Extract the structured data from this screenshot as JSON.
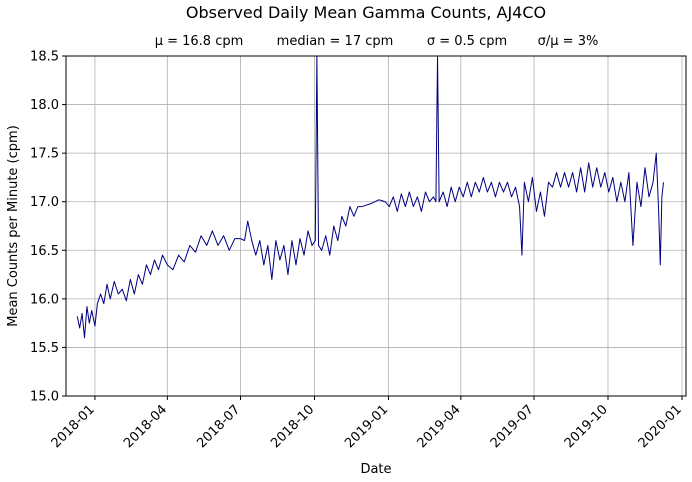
{
  "chart_data": {
    "type": "line",
    "title": "Observed Daily Mean Gamma Counts, AJ4CO",
    "subtitle_stats": [
      "μ = 16.8 cpm",
      "median = 17 cpm",
      "σ = 0.5 cpm",
      "σ/μ = 3%"
    ],
    "xlabel": "Date",
    "ylabel": "Mean Counts per Minute (cpm)",
    "ylim": [
      15.0,
      18.5
    ],
    "xlim": [
      "2017-11-26",
      "2020-01-06"
    ],
    "yticks": [
      "15.0",
      "15.5",
      "16.0",
      "16.5",
      "17.0",
      "17.5",
      "18.0",
      "18.5"
    ],
    "xticks": [
      {
        "date": "2018-01-01",
        "label": "2018-01"
      },
      {
        "date": "2018-04-01",
        "label": "2018-04"
      },
      {
        "date": "2018-07-01",
        "label": "2018-07"
      },
      {
        "date": "2018-10-01",
        "label": "2018-10"
      },
      {
        "date": "2019-01-01",
        "label": "2019-01"
      },
      {
        "date": "2019-04-01",
        "label": "2019-04"
      },
      {
        "date": "2019-07-01",
        "label": "2019-07"
      },
      {
        "date": "2019-10-01",
        "label": "2019-10"
      },
      {
        "date": "2020-01-01",
        "label": "2020-01"
      }
    ],
    "grid": true,
    "line_color": "#000080",
    "series": [
      {
        "points": [
          [
            "2017-12-10",
            15.82
          ],
          [
            "2017-12-13",
            15.7
          ],
          [
            "2017-12-16",
            15.85
          ],
          [
            "2017-12-19",
            15.6
          ],
          [
            "2017-12-22",
            15.92
          ],
          [
            "2017-12-25",
            15.75
          ],
          [
            "2017-12-28",
            15.88
          ],
          [
            "2018-01-01",
            15.72
          ],
          [
            "2018-01-04",
            15.95
          ],
          [
            "2018-01-08",
            16.05
          ],
          [
            "2018-01-12",
            15.95
          ],
          [
            "2018-01-16",
            16.15
          ],
          [
            "2018-01-20",
            16.0
          ],
          [
            "2018-01-25",
            16.18
          ],
          [
            "2018-01-30",
            16.05
          ],
          [
            "2018-02-04",
            16.1
          ],
          [
            "2018-02-09",
            15.98
          ],
          [
            "2018-02-14",
            16.2
          ],
          [
            "2018-02-19",
            16.05
          ],
          [
            "2018-02-24",
            16.25
          ],
          [
            "2018-03-01",
            16.15
          ],
          [
            "2018-03-06",
            16.35
          ],
          [
            "2018-03-11",
            16.25
          ],
          [
            "2018-03-16",
            16.4
          ],
          [
            "2018-03-21",
            16.3
          ],
          [
            "2018-03-26",
            16.45
          ],
          [
            "2018-04-01",
            16.35
          ],
          [
            "2018-04-08",
            16.3
          ],
          [
            "2018-04-15",
            16.45
          ],
          [
            "2018-04-22",
            16.38
          ],
          [
            "2018-04-29",
            16.55
          ],
          [
            "2018-05-06",
            16.48
          ],
          [
            "2018-05-13",
            16.65
          ],
          [
            "2018-05-20",
            16.55
          ],
          [
            "2018-05-27",
            16.7
          ],
          [
            "2018-06-03",
            16.55
          ],
          [
            "2018-06-10",
            16.65
          ],
          [
            "2018-06-17",
            16.5
          ],
          [
            "2018-06-24",
            16.62
          ],
          [
            "2018-07-01",
            16.62
          ],
          [
            "2018-07-06",
            16.6
          ],
          [
            "2018-07-10",
            16.8
          ],
          [
            "2018-07-15",
            16.6
          ],
          [
            "2018-07-20",
            16.45
          ],
          [
            "2018-07-25",
            16.6
          ],
          [
            "2018-07-30",
            16.35
          ],
          [
            "2018-08-04",
            16.55
          ],
          [
            "2018-08-09",
            16.2
          ],
          [
            "2018-08-14",
            16.6
          ],
          [
            "2018-08-19",
            16.4
          ],
          [
            "2018-08-24",
            16.55
          ],
          [
            "2018-08-29",
            16.25
          ],
          [
            "2018-09-03",
            16.6
          ],
          [
            "2018-09-08",
            16.35
          ],
          [
            "2018-09-13",
            16.62
          ],
          [
            "2018-09-18",
            16.45
          ],
          [
            "2018-09-23",
            16.7
          ],
          [
            "2018-09-28",
            16.55
          ],
          [
            "2018-10-02",
            16.6
          ],
          [
            "2018-10-04",
            18.5
          ],
          [
            "2018-10-06",
            16.55
          ],
          [
            "2018-10-10",
            16.5
          ],
          [
            "2018-10-15",
            16.65
          ],
          [
            "2018-10-20",
            16.45
          ],
          [
            "2018-10-25",
            16.75
          ],
          [
            "2018-10-30",
            16.6
          ],
          [
            "2018-11-04",
            16.85
          ],
          [
            "2018-11-09",
            16.75
          ],
          [
            "2018-11-14",
            16.95
          ],
          [
            "2018-11-19",
            16.85
          ],
          [
            "2018-11-24",
            16.95
          ],
          [
            "2018-11-29",
            16.95
          ],
          [
            "2018-12-10",
            16.98
          ],
          [
            "2018-12-20",
            17.02
          ],
          [
            "2018-12-28",
            17.0
          ],
          [
            "2019-01-02",
            16.95
          ],
          [
            "2019-01-07",
            17.05
          ],
          [
            "2019-01-12",
            16.9
          ],
          [
            "2019-01-17",
            17.08
          ],
          [
            "2019-01-22",
            16.95
          ],
          [
            "2019-01-27",
            17.1
          ],
          [
            "2019-02-01",
            16.95
          ],
          [
            "2019-02-06",
            17.05
          ],
          [
            "2019-02-11",
            16.9
          ],
          [
            "2019-02-16",
            17.1
          ],
          [
            "2019-02-21",
            17.0
          ],
          [
            "2019-02-26",
            17.05
          ],
          [
            "2019-03-01",
            17.0
          ],
          [
            "2019-03-03",
            18.5
          ],
          [
            "2019-03-05",
            17.0
          ],
          [
            "2019-03-10",
            17.1
          ],
          [
            "2019-03-15",
            16.95
          ],
          [
            "2019-03-20",
            17.15
          ],
          [
            "2019-03-25",
            17.0
          ],
          [
            "2019-03-30",
            17.15
          ],
          [
            "2019-04-04",
            17.05
          ],
          [
            "2019-04-09",
            17.2
          ],
          [
            "2019-04-14",
            17.05
          ],
          [
            "2019-04-19",
            17.2
          ],
          [
            "2019-04-24",
            17.1
          ],
          [
            "2019-04-29",
            17.25
          ],
          [
            "2019-05-04",
            17.1
          ],
          [
            "2019-05-09",
            17.2
          ],
          [
            "2019-05-14",
            17.05
          ],
          [
            "2019-05-19",
            17.2
          ],
          [
            "2019-05-24",
            17.1
          ],
          [
            "2019-05-29",
            17.2
          ],
          [
            "2019-06-03",
            17.05
          ],
          [
            "2019-06-08",
            17.15
          ],
          [
            "2019-06-13",
            16.95
          ],
          [
            "2019-06-16",
            16.45
          ],
          [
            "2019-06-19",
            17.2
          ],
          [
            "2019-06-24",
            17.0
          ],
          [
            "2019-06-29",
            17.25
          ],
          [
            "2019-07-04",
            16.9
          ],
          [
            "2019-07-09",
            17.1
          ],
          [
            "2019-07-14",
            16.85
          ],
          [
            "2019-07-19",
            17.2
          ],
          [
            "2019-07-24",
            17.15
          ],
          [
            "2019-07-29",
            17.3
          ],
          [
            "2019-08-03",
            17.15
          ],
          [
            "2019-08-08",
            17.3
          ],
          [
            "2019-08-13",
            17.15
          ],
          [
            "2019-08-18",
            17.3
          ],
          [
            "2019-08-23",
            17.1
          ],
          [
            "2019-08-28",
            17.35
          ],
          [
            "2019-09-02",
            17.1
          ],
          [
            "2019-09-07",
            17.4
          ],
          [
            "2019-09-12",
            17.15
          ],
          [
            "2019-09-17",
            17.35
          ],
          [
            "2019-09-22",
            17.15
          ],
          [
            "2019-09-27",
            17.3
          ],
          [
            "2019-10-02",
            17.1
          ],
          [
            "2019-10-07",
            17.25
          ],
          [
            "2019-10-12",
            17.0
          ],
          [
            "2019-10-17",
            17.2
          ],
          [
            "2019-10-22",
            17.0
          ],
          [
            "2019-10-27",
            17.3
          ],
          [
            "2019-11-01",
            16.55
          ],
          [
            "2019-11-06",
            17.2
          ],
          [
            "2019-11-11",
            16.95
          ],
          [
            "2019-11-16",
            17.35
          ],
          [
            "2019-11-21",
            17.05
          ],
          [
            "2019-11-26",
            17.2
          ],
          [
            "2019-11-30",
            17.5
          ],
          [
            "2019-12-03",
            16.9
          ],
          [
            "2019-12-05",
            16.35
          ],
          [
            "2019-12-07",
            17.05
          ],
          [
            "2019-12-09",
            17.2
          ]
        ]
      }
    ]
  }
}
